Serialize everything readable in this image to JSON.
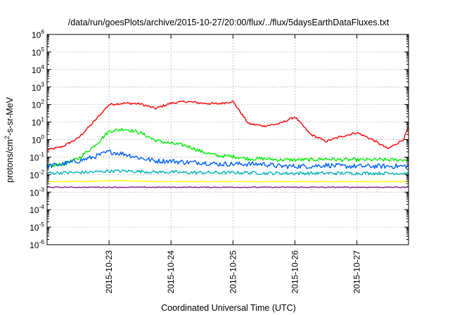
{
  "chart_data": {
    "type": "line",
    "title": "/data/run/goesPlots/archive/2015-10-27/20:00/flux/../flux/5daysEarthDataFluxes.txt",
    "xlabel": "Coordinated Universal Time (UTC)",
    "ylabel": "protons/cm²-s-sr-MeV",
    "ylabel_parts": {
      "prefix": "protons/cm",
      "superscript": "2",
      "suffix": "-s-sr-MeV"
    },
    "yscale": "log",
    "ylim": [
      1e-06,
      1000000.0
    ],
    "xlim": [
      "2015-10-22 00:00",
      "2015-10-27 20:00"
    ],
    "grid": true,
    "x_ticks": [
      "2015-10-23",
      "2015-10-24",
      "2015-10-25",
      "2015-10-26",
      "2015-10-27"
    ],
    "y_ticks": [
      {
        "base": "10",
        "exp": "-6"
      },
      {
        "base": "10",
        "exp": "-5"
      },
      {
        "base": "10",
        "exp": "-4"
      },
      {
        "base": "10",
        "exp": "-3"
      },
      {
        "base": "10",
        "exp": "-2"
      },
      {
        "base": "10",
        "exp": "-1"
      },
      {
        "base": "10",
        "exp": "0"
      },
      {
        "base": "10",
        "exp": "1"
      },
      {
        "base": "10",
        "exp": "2"
      },
      {
        "base": "10",
        "exp": "3"
      },
      {
        "base": "10",
        "exp": "4"
      },
      {
        "base": "10",
        "exp": "5"
      },
      {
        "base": "10",
        "exp": "6"
      }
    ],
    "x": [
      "2015-10-22 00:00",
      "2015-10-22 06:00",
      "2015-10-22 12:00",
      "2015-10-22 18:00",
      "2015-10-23 00:00",
      "2015-10-23 06:00",
      "2015-10-23 12:00",
      "2015-10-23 18:00",
      "2015-10-24 00:00",
      "2015-10-24 06:00",
      "2015-10-24 12:00",
      "2015-10-24 18:00",
      "2015-10-25 00:00",
      "2015-10-25 06:00",
      "2015-10-25 12:00",
      "2015-10-25 18:00",
      "2015-10-26 00:00",
      "2015-10-26 06:00",
      "2015-10-26 12:00",
      "2015-10-26 18:00",
      "2015-10-27 00:00",
      "2015-10-27 06:00",
      "2015-10-27 12:00",
      "2015-10-27 18:00",
      "2015-10-27 20:00"
    ],
    "series": [
      {
        "color": "#ff0000",
        "values": [
          0.25,
          0.4,
          1.2,
          10,
          100,
          120,
          110,
          60,
          120,
          150,
          120,
          110,
          150,
          8,
          6,
          8,
          20,
          2,
          0.8,
          1.5,
          2.5,
          1,
          0.3,
          1,
          5
        ]
      },
      {
        "color": "#00ee00",
        "values": [
          0.03,
          0.04,
          0.08,
          0.4,
          3,
          4,
          2.5,
          0.9,
          0.6,
          0.45,
          0.2,
          0.12,
          0.11,
          0.08,
          0.08,
          0.07,
          0.07,
          0.07,
          0.08,
          0.07,
          0.07,
          0.07,
          0.07,
          0.07,
          0.07
        ]
      },
      {
        "color": "#0060ff",
        "values": [
          0.03,
          0.04,
          0.06,
          0.1,
          0.2,
          0.15,
          0.09,
          0.06,
          0.06,
          0.05,
          0.05,
          0.04,
          0.04,
          0.04,
          0.04,
          0.03,
          0.03,
          0.03,
          0.035,
          0.03,
          0.03,
          0.03,
          0.03,
          0.03,
          0.03
        ]
      },
      {
        "color": "#00b3b3",
        "values": [
          0.012,
          0.013,
          0.013,
          0.014,
          0.016,
          0.016,
          0.015,
          0.014,
          0.014,
          0.013,
          0.013,
          0.013,
          0.013,
          0.013,
          0.012,
          0.012,
          0.012,
          0.012,
          0.012,
          0.012,
          0.012,
          0.012,
          0.012,
          0.012,
          0.012
        ]
      },
      {
        "color": "#ffff00",
        "values": [
          0.004,
          0.004,
          0.004,
          0.0042,
          0.0045,
          0.0045,
          0.0042,
          0.004,
          0.004,
          0.004,
          0.004,
          0.004,
          0.004,
          0.004,
          0.004,
          0.004,
          0.004,
          0.004,
          0.004,
          0.004,
          0.004,
          0.004,
          0.004,
          0.004,
          0.004
        ]
      },
      {
        "color": "#8b1a8b",
        "values": [
          0.0019,
          0.0019,
          0.0019,
          0.0019,
          0.0019,
          0.0019,
          0.0019,
          0.0019,
          0.0019,
          0.0019,
          0.0019,
          0.0019,
          0.0019,
          0.0019,
          0.0019,
          0.0019,
          0.0019,
          0.0019,
          0.0019,
          0.0019,
          0.0019,
          0.0019,
          0.0019,
          0.0019,
          0.0019
        ]
      }
    ]
  }
}
